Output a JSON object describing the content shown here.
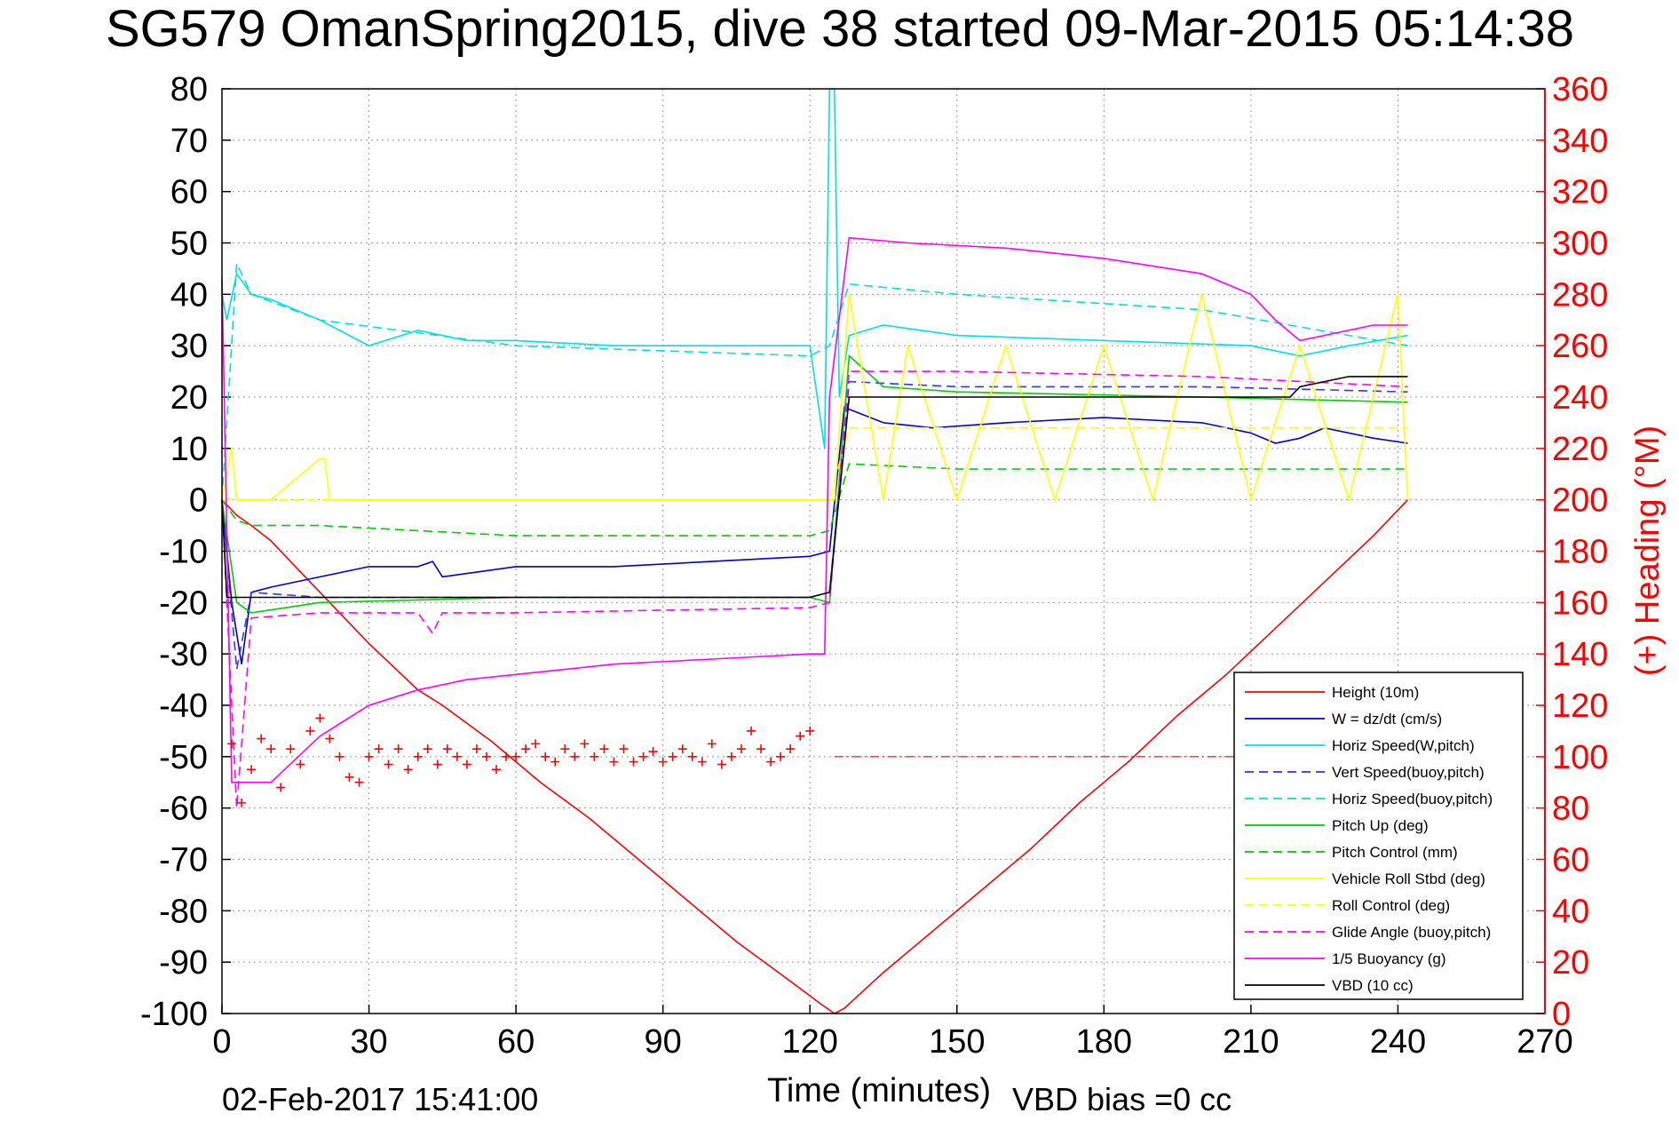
{
  "chart_data": {
    "type": "line",
    "title": "SG579 OmanSpring2015, dive 38 started 09-Mar-2015 05:14:38",
    "xlabel": "Time (minutes)",
    "ylabel_right": "(+) Heading (°M)",
    "footer_date": "02-Feb-2017 15:41:00",
    "footer_bias": "VBD bias =0 cc",
    "xlim": [
      0,
      270
    ],
    "ylim": [
      -100,
      80
    ],
    "ylim_right": [
      0,
      360
    ],
    "x_ticks": [
      "0",
      "30",
      "60",
      "90",
      "120",
      "150",
      "180",
      "210",
      "240",
      "270"
    ],
    "y_ticks": [
      "80",
      "70",
      "60",
      "50",
      "40",
      "30",
      "20",
      "10",
      "0",
      "-10",
      "-20",
      "-30",
      "-40",
      "-50",
      "-60",
      "-70",
      "-80",
      "-90",
      "-100"
    ],
    "y_right_ticks": [
      "360",
      "340",
      "320",
      "300",
      "280",
      "260",
      "240",
      "220",
      "200",
      "180",
      "160",
      "140",
      "120",
      "100",
      "80",
      "60",
      "40",
      "20",
      "0"
    ],
    "grid": true,
    "legend_position": "bottom-right",
    "series": [
      {
        "name": "Height (10m)",
        "color": "#ff0000",
        "dash": "solid",
        "x": [
          0,
          3,
          6,
          10,
          15,
          20,
          25,
          30,
          40,
          45,
          55,
          65,
          75,
          85,
          95,
          105,
          115,
          122,
          125,
          127,
          135,
          145,
          155,
          165,
          175,
          185,
          195,
          205,
          215,
          225,
          235,
          242
        ],
        "y": [
          0,
          -3,
          -5,
          -8,
          -13,
          -18,
          -23,
          -28,
          -37,
          -40,
          -47,
          -55,
          -62,
          -70,
          -78,
          -86,
          -93,
          -98,
          -100,
          -99,
          -92,
          -84,
          -76,
          -68,
          -59,
          -51,
          -42,
          -34,
          -25,
          -16,
          -7,
          0
        ]
      },
      {
        "name": "W = dz/dt (cm/s)",
        "color": "#0000cc",
        "dash": "solid",
        "x": [
          0,
          2,
          4,
          6,
          10,
          20,
          30,
          40,
          43,
          45,
          60,
          80,
          100,
          120,
          124,
          127,
          135,
          145,
          160,
          180,
          200,
          210,
          215,
          220,
          225,
          235,
          242
        ],
        "y": [
          0,
          -20,
          -32,
          -18,
          -17,
          -15,
          -13,
          -13,
          -12,
          -15,
          -13,
          -13,
          -12,
          -11,
          -10,
          18,
          15,
          14,
          15,
          16,
          15,
          13,
          11,
          12,
          14,
          12,
          11
        ]
      },
      {
        "name": "Horiz Speed(W,pitch)",
        "color": "#00e0e0",
        "dash": "solid",
        "x": [
          0,
          1,
          3,
          6,
          10,
          20,
          30,
          40,
          50,
          60,
          80,
          100,
          120,
          123,
          124,
          125,
          126,
          128,
          135,
          150,
          180,
          210,
          220,
          230,
          242
        ],
        "y": [
          40,
          35,
          44,
          40,
          39,
          35,
          30,
          33,
          31,
          31,
          30,
          30,
          30,
          10,
          80,
          80,
          20,
          32,
          34,
          32,
          31,
          30,
          28,
          30,
          32
        ]
      },
      {
        "name": "Vert Speed(buoy,pitch)",
        "color": "#3333ff",
        "dash": "dashed",
        "x": [
          0,
          3,
          6,
          20,
          60,
          120,
          124,
          128,
          150,
          200,
          242
        ],
        "y": [
          0,
          -33,
          -18,
          -19,
          -19,
          -19,
          -18,
          23,
          22,
          22,
          21
        ]
      },
      {
        "name": "Horiz Speed(buoy,pitch)",
        "color": "#00e0e0",
        "dash": "dashed",
        "x": [
          0,
          3,
          6,
          20,
          60,
          120,
          124,
          128,
          150,
          200,
          242
        ],
        "y": [
          0,
          46,
          40,
          35,
          30,
          28,
          30,
          42,
          40,
          37,
          30
        ]
      },
      {
        "name": "Pitch Up (deg)",
        "color": "#00cc00",
        "dash": "solid",
        "x": [
          0,
          3,
          6,
          20,
          60,
          120,
          124,
          128,
          135,
          150,
          200,
          242
        ],
        "y": [
          0,
          -20,
          -22,
          -20,
          -19,
          -19,
          -20,
          28,
          22,
          21,
          20,
          19
        ]
      },
      {
        "name": "Pitch Control (mm)",
        "color": "#00cc00",
        "dash": "dashed",
        "x": [
          0,
          3,
          6,
          20,
          40,
          60,
          120,
          124,
          128,
          150,
          200,
          242
        ],
        "y": [
          0,
          -4,
          -5,
          -5,
          -6,
          -7,
          -7,
          -6,
          7,
          6,
          6,
          6
        ]
      },
      {
        "name": "Vehicle Roll Stbd (deg)",
        "color": "#ffff00",
        "dash": "solid",
        "x": [
          0,
          2,
          3,
          5,
          10,
          20,
          21,
          22,
          30,
          40,
          50,
          60,
          80,
          100,
          120,
          124,
          125,
          128,
          135,
          140,
          150,
          160,
          170,
          180,
          190,
          200,
          210,
          220,
          230,
          240,
          242
        ],
        "y": [
          0,
          10,
          0,
          0,
          0,
          8,
          8,
          0,
          0,
          0,
          0,
          0,
          0,
          0,
          0,
          0,
          0,
          40,
          0,
          30,
          0,
          30,
          0,
          30,
          0,
          40,
          0,
          30,
          0,
          40,
          0
        ]
      },
      {
        "name": "Roll Control (deg)",
        "color": "#ffff00",
        "dash": "dashed",
        "x": [
          0,
          5,
          30,
          60,
          90,
          120,
          124,
          128,
          150,
          180,
          210,
          242
        ],
        "y": [
          0,
          0,
          0,
          0,
          0,
          0,
          0,
          14,
          14,
          14,
          14,
          14
        ]
      },
      {
        "name": "Glide Angle (buoy,pitch)",
        "color": "#ff00ff",
        "dash": "dashed",
        "x": [
          0,
          3,
          6,
          20,
          40,
          43,
          45,
          60,
          120,
          124,
          128,
          150,
          200,
          242
        ],
        "y": [
          0,
          -60,
          -23,
          -22,
          -22,
          -26,
          -22,
          -22,
          -21,
          -20,
          25,
          25,
          24,
          22
        ]
      },
      {
        "name": "1/5 Buoyancy (g)",
        "color": "#ff00ff",
        "dash": "solid",
        "x": [
          0,
          2,
          6,
          10,
          20,
          30,
          40,
          50,
          60,
          80,
          100,
          120,
          123,
          124,
          128,
          140,
          160,
          180,
          200,
          210,
          215,
          220,
          225,
          235,
          242
        ],
        "y": [
          43,
          -55,
          -55,
          -55,
          -46,
          -40,
          -37,
          -35,
          -34,
          -32,
          -31,
          -30,
          -30,
          20,
          51,
          50,
          49,
          47,
          44,
          40,
          35,
          31,
          32,
          34,
          34
        ]
      },
      {
        "name": "VBD (10 cc)",
        "color": "#000000",
        "dash": "solid",
        "x": [
          0,
          1,
          3,
          120,
          124,
          128,
          150,
          200,
          218,
          220,
          230,
          242
        ],
        "y": [
          0,
          -19,
          -19,
          -19,
          -18,
          20,
          20,
          20,
          20,
          22,
          24,
          24
        ]
      }
    ],
    "heading_series": {
      "name": "(+) Heading",
      "color": "#ff0000",
      "marker": "+",
      "axis": "right",
      "x": [
        2,
        4,
        6,
        8,
        10,
        12,
        14,
        16,
        18,
        20,
        22,
        24,
        26,
        28,
        30,
        32,
        34,
        36,
        38,
        40,
        42,
        44,
        46,
        48,
        50,
        52,
        54,
        56,
        58,
        60,
        62,
        64,
        66,
        68,
        70,
        72,
        74,
        76,
        78,
        80,
        82,
        84,
        86,
        88,
        90,
        92,
        94,
        96,
        98,
        100,
        102,
        104,
        106,
        108,
        110,
        112,
        114,
        116,
        118,
        120
      ],
      "y": [
        105,
        82,
        95,
        107,
        103,
        88,
        103,
        97,
        110,
        115,
        107,
        100,
        92,
        90,
        100,
        103,
        97,
        103,
        95,
        100,
        103,
        97,
        103,
        100,
        97,
        103,
        100,
        95,
        100,
        100,
        103,
        105,
        100,
        98,
        103,
        100,
        105,
        100,
        103,
        98,
        103,
        98,
        100,
        102,
        98,
        100,
        103,
        100,
        98,
        105,
        97,
        100,
        103,
        110,
        103,
        98,
        100,
        103,
        108,
        110
      ]
    },
    "heading_reference": {
      "color": "#ff0000",
      "dash": "dash-dot",
      "y_right": 100,
      "x_range": [
        125,
        242
      ]
    }
  }
}
